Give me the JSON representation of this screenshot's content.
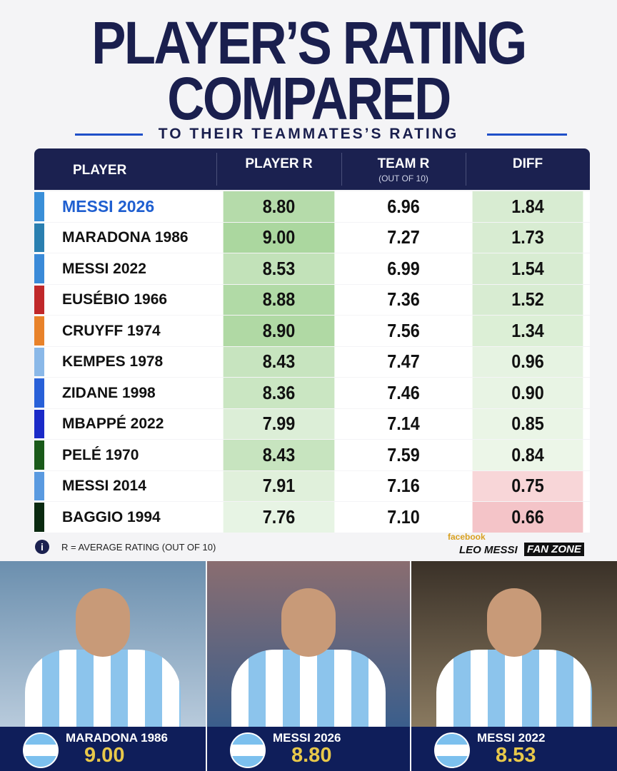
{
  "header": {
    "title_lines": [
      "PLAYER’S RATING",
      "COMPARED"
    ],
    "subtitle": "TO THEIR TEAMMATES’S RATING"
  },
  "table": {
    "columns": [
      {
        "label": "PLAYER"
      },
      {
        "label": "PLAYER R"
      },
      {
        "label": "TEAM R",
        "sublabel": "(OUT OF 10)"
      },
      {
        "label": "DIFF"
      }
    ],
    "rows": [
      {
        "name": "MESSI 2026",
        "player_r": "8.80",
        "team_r": "6.96",
        "diff": "1.84",
        "stripe": "#3a8fd8",
        "name_color": "#1f5fd0",
        "diff_color": "#d8ecd2"
      },
      {
        "name": "MARADONA 1986",
        "player_r": "9.00",
        "team_r": "7.27",
        "diff": "1.73",
        "stripe": "#2a7fb0",
        "name_color": "#111111",
        "diff_color": "#d8ecd2"
      },
      {
        "name": "MESSI 2022",
        "player_r": "8.53",
        "team_r": "6.99",
        "diff": "1.54",
        "stripe": "#3a8ad8",
        "name_color": "#111111",
        "diff_color": "#d8ecd2"
      },
      {
        "name": "EUSÉBIO 1966",
        "player_r": "8.88",
        "team_r": "7.36",
        "diff": "1.52",
        "stripe": "#c0282a",
        "name_color": "#111111",
        "diff_color": "#d8ecd2"
      },
      {
        "name": "CRUYFF 1974",
        "player_r": "8.90",
        "team_r": "7.56",
        "diff": "1.34",
        "stripe": "#e8822a",
        "name_color": "#111111",
        "diff_color": "#dcefd6"
      },
      {
        "name": "KEMPES 1978",
        "player_r": "8.43",
        "team_r": "7.47",
        "diff": "0.96",
        "stripe": "#8ab8e8",
        "name_color": "#111111",
        "diff_color": "#e6f3e2"
      },
      {
        "name": "ZIDANE 1998",
        "player_r": "8.36",
        "team_r": "7.46",
        "diff": "0.90",
        "stripe": "#2860d8",
        "name_color": "#111111",
        "diff_color": "#e8f4e4"
      },
      {
        "name": "MBAPPÉ 2022",
        "player_r": "7.99",
        "team_r": "7.14",
        "diff": "0.85",
        "stripe": "#1a2ac8",
        "name_color": "#111111",
        "diff_color": "#eaf5e6"
      },
      {
        "name": "PELÉ 1970",
        "player_r": "8.43",
        "team_r": "7.59",
        "diff": "0.84",
        "stripe": "#1a5a1a",
        "name_color": "#111111",
        "diff_color": "#ecf6e8"
      },
      {
        "name": "MESSI 2014",
        "player_r": "7.91",
        "team_r": "7.16",
        "diff": "0.75",
        "stripe": "#5a9ae0",
        "name_color": "#111111",
        "diff_color": "#f8d6d8"
      },
      {
        "name": "BAGGIO 1994",
        "player_r": "7.76",
        "team_r": "7.10",
        "diff": "0.66",
        "stripe": "#0a2a10",
        "name_color": "#111111",
        "diff_color": "#f4c4c8"
      }
    ]
  },
  "footnote": "R = AVERAGE RATING (OUT OF 10)",
  "brand": {
    "network": "facebook",
    "name": "LEO MESSI",
    "tag": "FAN ZONE"
  },
  "cards": [
    {
      "name": "MARADONA 1986",
      "rating": "9.00"
    },
    {
      "name": "MESSI 2026",
      "rating": "8.80"
    },
    {
      "name": "MESSI 2022",
      "rating": "8.53"
    }
  ]
}
